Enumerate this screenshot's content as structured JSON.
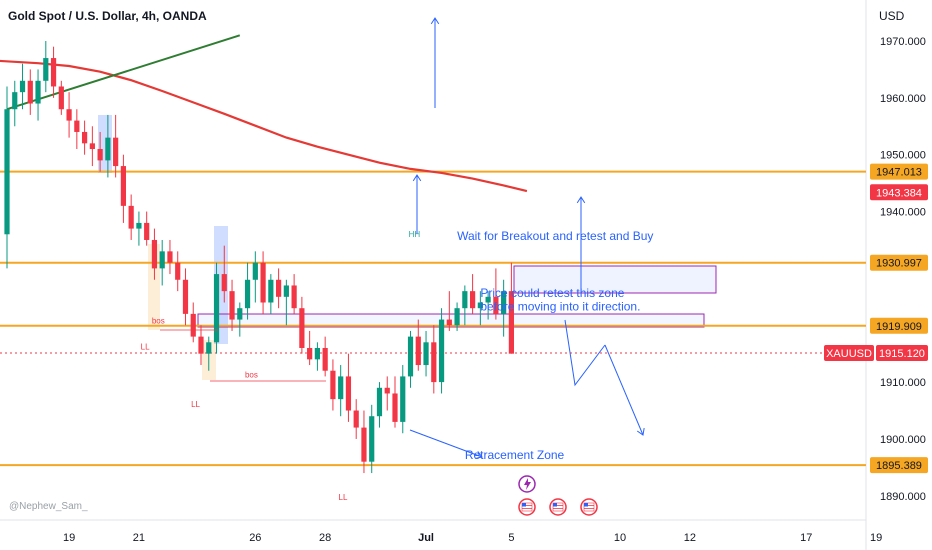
{
  "header": {
    "title": "Gold Spot / U.S. Dollar, 4h, OANDA",
    "currency": "USD",
    "watermark": "@Nephew_Sam_"
  },
  "chart_data": {
    "type": "candlestick",
    "ylim": [
      1884,
      1978
    ],
    "y_ticks": [
      "1970.000",
      "1960.000",
      "1950.000",
      "1940.000",
      "1910.000",
      "1900.000",
      "1890.000"
    ],
    "x_ticks": [
      {
        "label": "19",
        "bar": 8
      },
      {
        "label": "21",
        "bar": 17
      },
      {
        "label": "26",
        "bar": 32
      },
      {
        "label": "28",
        "bar": 41
      },
      {
        "label": "Jul",
        "bar": 54
      },
      {
        "label": "5",
        "bar": 65
      },
      {
        "label": "10",
        "bar": 79
      },
      {
        "label": "12",
        "bar": 88
      },
      {
        "label": "17",
        "bar": 103
      },
      {
        "label": "19",
        "bar": 112
      }
    ],
    "price_levels": [
      {
        "value": 1947.013,
        "label": "1947.013",
        "color": "#f5a623"
      },
      {
        "value": 1930.997,
        "label": "1930.997",
        "color": "#f5a623"
      },
      {
        "value": 1919.909,
        "label": "1919.909",
        "color": "#f5a623"
      },
      {
        "value": 1895.389,
        "label": "1895.389",
        "color": "#f5a623"
      }
    ],
    "current_price": {
      "value": 1915.12,
      "symbol": "XAUUSD",
      "label": "1915.120",
      "color": "#f23645"
    },
    "ma_price": {
      "value": 1943.384,
      "label": "1943.384",
      "color": "#f23645"
    },
    "moving_average": [
      [
        -1,
        1966.5
      ],
      [
        4,
        1966.1
      ],
      [
        8,
        1965.6
      ],
      [
        12,
        1964.6
      ],
      [
        16,
        1963.1
      ],
      [
        20,
        1961.2
      ],
      [
        24,
        1959.2
      ],
      [
        28,
        1957.2
      ],
      [
        32,
        1955.1
      ],
      [
        36,
        1953.0
      ],
      [
        40,
        1951.4
      ],
      [
        44,
        1950.0
      ],
      [
        48,
        1948.6
      ],
      [
        52,
        1947.5
      ],
      [
        56,
        1946.8
      ],
      [
        60,
        1945.8
      ],
      [
        64,
        1944.6
      ],
      [
        67,
        1943.6
      ]
    ],
    "trendline": [
      [
        0,
        1958
      ],
      [
        30,
        1971
      ]
    ],
    "candles": [
      [
        1936,
        1962,
        1930,
        1958
      ],
      [
        1958,
        1963,
        1955,
        1961
      ],
      [
        1961,
        1966,
        1958,
        1963
      ],
      [
        1963,
        1965,
        1957,
        1959
      ],
      [
        1959,
        1965,
        1956,
        1963
      ],
      [
        1963,
        1970,
        1961,
        1967
      ],
      [
        1967,
        1969,
        1960,
        1962
      ],
      [
        1962,
        1963,
        1957,
        1958
      ],
      [
        1958,
        1961,
        1953,
        1956
      ],
      [
        1956,
        1958,
        1951,
        1954
      ],
      [
        1954,
        1956,
        1950,
        1952
      ],
      [
        1952,
        1955,
        1948,
        1951
      ],
      [
        1951,
        1954,
        1947,
        1949
      ],
      [
        1949,
        1957,
        1946,
        1953
      ],
      [
        1953,
        1957,
        1946,
        1948
      ],
      [
        1948,
        1950,
        1938,
        1941
      ],
      [
        1941,
        1943,
        1935,
        1937
      ],
      [
        1937,
        1940,
        1934,
        1938
      ],
      [
        1938,
        1940,
        1934,
        1935
      ],
      [
        1935,
        1937,
        1928,
        1930
      ],
      [
        1930,
        1935,
        1927,
        1933
      ],
      [
        1933,
        1935,
        1929,
        1931
      ],
      [
        1931,
        1933,
        1926,
        1928
      ],
      [
        1928,
        1930,
        1920,
        1922
      ],
      [
        1922,
        1924,
        1917,
        1918
      ],
      [
        1918,
        1920,
        1913,
        1915
      ],
      [
        1915,
        1918,
        1912,
        1917
      ],
      [
        1917,
        1931,
        1915,
        1929
      ],
      [
        1929,
        1934,
        1924,
        1926
      ],
      [
        1926,
        1928,
        1919,
        1921
      ],
      [
        1921,
        1924,
        1918,
        1923
      ],
      [
        1923,
        1931,
        1921,
        1928
      ],
      [
        1928,
        1933,
        1924,
        1931
      ],
      [
        1931,
        1933,
        1922,
        1924
      ],
      [
        1924,
        1929,
        1922,
        1928
      ],
      [
        1928,
        1930,
        1923,
        1925
      ],
      [
        1925,
        1928,
        1920,
        1927
      ],
      [
        1927,
        1929,
        1922,
        1923
      ],
      [
        1923,
        1925,
        1915,
        1916
      ],
      [
        1916,
        1919,
        1913,
        1914
      ],
      [
        1914,
        1917,
        1912,
        1916
      ],
      [
        1916,
        1918,
        1911,
        1912
      ],
      [
        1912,
        1914,
        1905,
        1907
      ],
      [
        1907,
        1913,
        1904,
        1911
      ],
      [
        1911,
        1915,
        1903,
        1905
      ],
      [
        1905,
        1907,
        1900,
        1902
      ],
      [
        1902,
        1905,
        1894,
        1896
      ],
      [
        1896,
        1906,
        1894,
        1904
      ],
      [
        1904,
        1910,
        1902,
        1909
      ],
      [
        1909,
        1911,
        1905,
        1908
      ],
      [
        1908,
        1911,
        1902,
        1903
      ],
      [
        1903,
        1913,
        1901,
        1911
      ],
      [
        1911,
        1919,
        1909,
        1918
      ],
      [
        1918,
        1921,
        1912,
        1913
      ],
      [
        1913,
        1919,
        1911,
        1917
      ],
      [
        1917,
        1920,
        1908,
        1910
      ],
      [
        1910,
        1923,
        1908,
        1921
      ],
      [
        1921,
        1926,
        1919,
        1920
      ],
      [
        1920,
        1924,
        1919,
        1923
      ],
      [
        1923,
        1927,
        1920,
        1926
      ],
      [
        1926,
        1929,
        1922,
        1923
      ],
      [
        1923,
        1926,
        1920,
        1924
      ],
      [
        1924,
        1926,
        1921,
        1925
      ],
      [
        1925,
        1930,
        1921,
        1922
      ],
      [
        1922,
        1928,
        1918,
        1926
      ],
      [
        1926,
        1931,
        1915,
        1915
      ]
    ],
    "annotations": [
      {
        "text": "Wait for Breakout and retest and Buy",
        "bar": 58,
        "price": 1935
      },
      {
        "text": "Price could retest this zone",
        "bar": 61,
        "price": 1925
      },
      {
        "text": "before moving into it direction.",
        "bar": 61,
        "price": 1922.6
      },
      {
        "text": "Retracement Zone",
        "bar": 59,
        "price": 1896.5
      }
    ],
    "labels": [
      {
        "text": "HH",
        "bar": 52.5,
        "price": 1935.5,
        "color": "#26a69a"
      },
      {
        "text": "bos",
        "bar": 19.5,
        "price": 1920.3,
        "color": "#f23645"
      },
      {
        "text": "LL",
        "bar": 17.8,
        "price": 1915.7,
        "color": "#f23645"
      },
      {
        "text": "bos",
        "bar": 31.5,
        "price": 1910.8,
        "color": "#f23645"
      },
      {
        "text": "LL",
        "bar": 24.3,
        "price": 1905.6,
        "color": "#f23645"
      },
      {
        "text": "LL",
        "bar": 43.3,
        "price": 1889.3,
        "color": "#f23645"
      }
    ]
  }
}
